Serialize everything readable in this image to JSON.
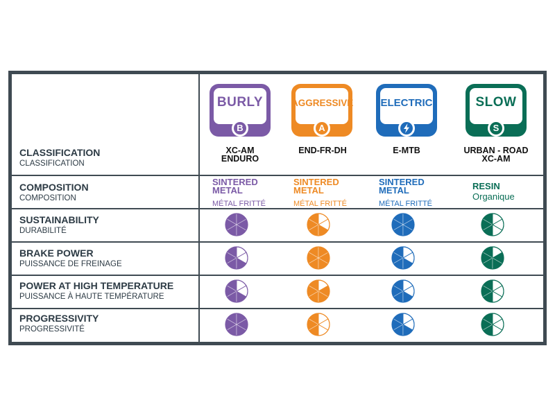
{
  "colors": {
    "border": "#3f4a52",
    "burly": "#7b5aa6",
    "aggressive": "#ee8a24",
    "electric": "#1f6cba",
    "slow": "#0a6e56"
  },
  "rows": [
    {
      "en": "CLASSIFICATION",
      "fr": "CLASSIFICATION"
    },
    {
      "en": "COMPOSITION",
      "fr": "COMPOSITION"
    },
    {
      "en": "SUSTAINABILITY",
      "fr": "DURABILITÉ"
    },
    {
      "en": "BRAKE POWER",
      "fr": "PUISSANCE DE FREINAGE"
    },
    {
      "en": "POWER AT HIGH TEMPERATURE",
      "fr": "PUISSANCE À HAUTE TEMPÉRATURE"
    },
    {
      "en": "PROGRESSIVITY",
      "fr": "PROGRESSIVITÉ"
    }
  ],
  "columns": [
    {
      "badge": "BURLY",
      "letter": "B",
      "icon": "letter-b-icon",
      "use_line1": "XC-AM",
      "use_line2": "ENDURO",
      "comp_line1": "SINTERED",
      "comp_line2": "METAL",
      "comp_fr": "MÉTAL FRITTÉ",
      "ratings": {
        "sustainability": 6,
        "brake_power": 4,
        "high_temp": 4,
        "progressivity": 6
      }
    },
    {
      "badge": "AGGRESSIVE",
      "letter": "A",
      "icon": "letter-a-icon",
      "use_line1": "END-FR-DH",
      "use_line2": "",
      "comp_line1": "SINTERED",
      "comp_line2": "METAL",
      "comp_fr": "MÉTAL FRITTÉ",
      "ratings": {
        "sustainability": 4,
        "brake_power": 6,
        "high_temp": 5,
        "progressivity": 3
      }
    },
    {
      "badge": "ELECTRIC",
      "letter": "",
      "icon": "lightning-bolt-icon",
      "use_line1": "E-MTB",
      "use_line2": "",
      "comp_line1": "SINTERED",
      "comp_line2": "METAL",
      "comp_fr": "MÉTAL FRITTÉ",
      "ratings": {
        "sustainability": 6,
        "brake_power": 4,
        "high_temp": 4,
        "progressivity": 4
      }
    },
    {
      "badge": "SLOW",
      "letter": "S",
      "icon": "letter-s-icon",
      "use_line1": "URBAN - ROAD",
      "use_line2": "XC-AM",
      "comp_line1": "RESIN",
      "comp_line2": "",
      "comp_fr": "Organique",
      "ratings": {
        "sustainability": 3,
        "brake_power": 5,
        "high_temp": 3,
        "progressivity": 3
      }
    }
  ],
  "rating_scale_max": 6
}
